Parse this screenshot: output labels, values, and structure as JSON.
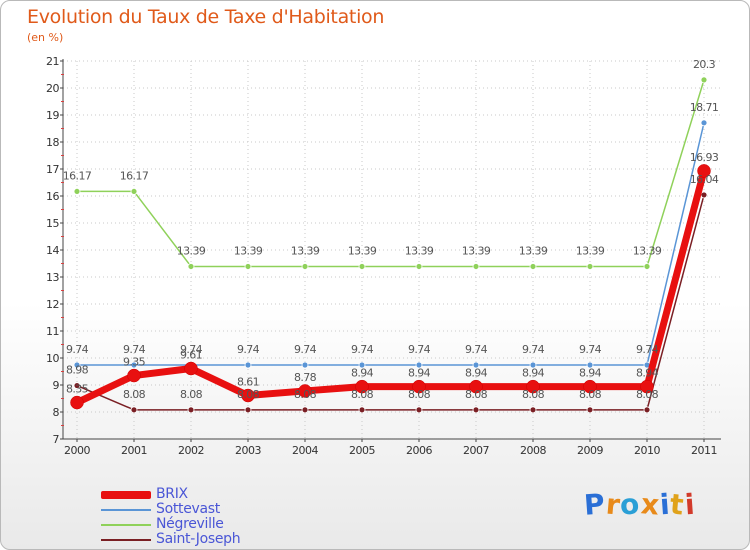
{
  "title": "Evolution du Taux de Taxe d'Habitation",
  "subtitle": "(en %)",
  "brand": {
    "text": "Proxiti",
    "letters": [
      "P",
      "r",
      "o",
      "x",
      "i",
      "t",
      "i"
    ],
    "colors": [
      "#2a6fd6",
      "#e88a1a",
      "#2a9fd6",
      "#e88a1a",
      "#2a6fd6",
      "#e0a21a",
      "#d23a2a"
    ]
  },
  "chart_data": {
    "type": "line",
    "title": "Evolution du Taux de Taxe d'Habitation",
    "ylabel": "(en %)",
    "xlabel": "",
    "ylim": [
      7,
      21
    ],
    "yticks": [
      "7",
      "8",
      "9",
      "10",
      "11",
      "12",
      "13",
      "14",
      "15",
      "16",
      "17",
      "18",
      "19",
      "20",
      "21"
    ],
    "categories": [
      "2000",
      "2001",
      "2002",
      "2003",
      "2004",
      "2005",
      "2006",
      "2007",
      "2008",
      "2009",
      "2010",
      "2011"
    ],
    "grid": true,
    "legend_position": "bottom-left",
    "series": [
      {
        "name": "BRIX",
        "color": "#e81010",
        "values": [
          8.35,
          9.35,
          9.61,
          8.61,
          8.78,
          8.94,
          8.94,
          8.94,
          8.94,
          8.94,
          8.94,
          16.93
        ],
        "labels": [
          "8.35",
          "9.35",
          "9.61",
          "8.61",
          "8.78",
          "8.94",
          "8.94",
          "8.94",
          "8.94",
          "8.94",
          "8.94",
          "16.93"
        ]
      },
      {
        "name": "Sottevast",
        "color": "#5a95d6",
        "values": [
          9.74,
          9.74,
          9.74,
          9.74,
          9.74,
          9.74,
          9.74,
          9.74,
          9.74,
          9.74,
          9.74,
          18.71
        ],
        "labels": [
          "9.74",
          "9.74",
          "9.74",
          "9.74",
          "9.74",
          "9.74",
          "9.74",
          "9.74",
          "9.74",
          "9.74",
          "9.74",
          "18.71"
        ]
      },
      {
        "name": "Négreville",
        "color": "#8fd15a",
        "values": [
          16.17,
          16.17,
          13.39,
          13.39,
          13.39,
          13.39,
          13.39,
          13.39,
          13.39,
          13.39,
          13.39,
          20.3
        ],
        "labels": [
          "16.17",
          "16.17",
          "13.39",
          "13.39",
          "13.39",
          "13.39",
          "13.39",
          "13.39",
          "13.39",
          "13.39",
          "13.39",
          "20.3"
        ]
      },
      {
        "name": "Saint-Joseph",
        "color": "#7a1f24",
        "values": [
          8.98,
          8.08,
          8.08,
          8.08,
          8.08,
          8.08,
          8.08,
          8.08,
          8.08,
          8.08,
          8.08,
          16.04
        ],
        "labels": [
          "8.98",
          "8.08",
          "8.08",
          "8.08",
          "8.08",
          "8.08",
          "8.08",
          "8.08",
          "8.08",
          "8.08",
          "8.08",
          "16.04"
        ]
      }
    ]
  }
}
